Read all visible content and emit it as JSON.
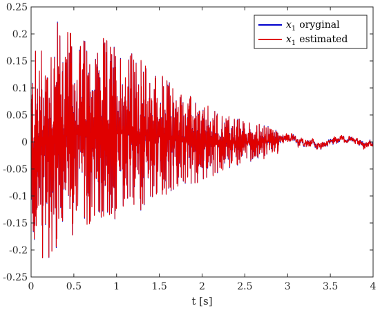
{
  "chart_data": {
    "type": "line",
    "title": "",
    "xlabel": "t [s]",
    "ylabel": "",
    "xlim": [
      0,
      4
    ],
    "ylim": [
      -0.25,
      0.25
    ],
    "x_ticks": [
      0,
      0.5,
      1,
      1.5,
      2,
      2.5,
      3,
      3.5,
      4
    ],
    "x_tick_labels": [
      "0",
      "0.5",
      "1",
      "1.5",
      "2",
      "2.5",
      "3",
      "3.5",
      "4"
    ],
    "y_ticks": [
      -0.25,
      -0.2,
      -0.15,
      -0.1,
      -0.05,
      0,
      0.05,
      0.1,
      0.15,
      0.2,
      0.25
    ],
    "y_tick_labels": [
      "-0.25",
      "-0.2",
      "-0.15",
      "-0.1",
      "-0.05",
      "0",
      "0.05",
      "0.1",
      "0.15",
      "0.2",
      "0.25"
    ],
    "grid": false,
    "legend_position": "top-right",
    "series": [
      {
        "name": "x₁ oryginal",
        "legend_symbol": "x",
        "legend_subscript": "1",
        "legend_suffix": "oryginal",
        "color": "#0000cc"
      },
      {
        "name": "x₁ estimated",
        "legend_symbol": "x",
        "legend_subscript": "1",
        "legend_suffix": "estimated",
        "color": "#e00000"
      }
    ],
    "envelope": {
      "t": [
        0,
        0.25,
        0.5,
        1.0,
        1.5,
        2.0,
        2.5,
        3.0,
        3.5,
        4.0
      ],
      "max": [
        0.16,
        0.24,
        0.2,
        0.19,
        0.13,
        0.07,
        0.04,
        0.02,
        0.015,
        0.015
      ],
      "min": [
        -0.2,
        -0.23,
        -0.17,
        -0.15,
        -0.11,
        -0.07,
        -0.04,
        -0.02,
        -0.015,
        -0.015
      ]
    }
  }
}
